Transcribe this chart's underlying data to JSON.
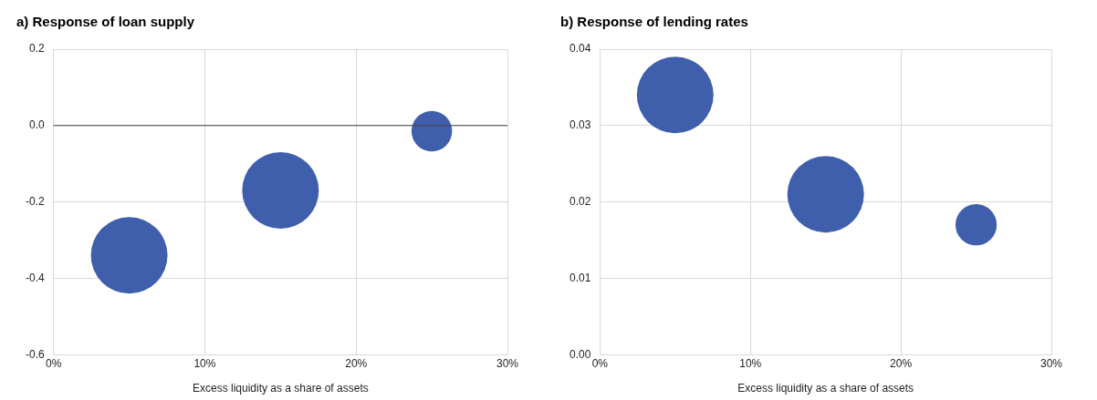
{
  "chart_data": [
    {
      "type": "bubble",
      "title": "a) Response of loan supply",
      "xlabel": "Excess liquidity as a share of assets",
      "x": [
        5,
        15,
        25
      ],
      "values": [
        -0.34,
        -0.17,
        -0.015
      ],
      "sizes": [
        1,
        1,
        0.28
      ],
      "color": "#3f5fac",
      "xlim": [
        0,
        30
      ],
      "xticks": [
        {
          "value": 0,
          "label": "0%"
        },
        {
          "value": 10,
          "label": "10%"
        },
        {
          "value": 20,
          "label": "20%"
        },
        {
          "value": 30,
          "label": "30%"
        }
      ],
      "ylim": [
        -0.6,
        0.2
      ],
      "yticks": [
        {
          "value": -0.6,
          "label": "-0.6"
        },
        {
          "value": -0.4,
          "label": "-0.4"
        },
        {
          "value": -0.2,
          "label": "-0.2"
        },
        {
          "value": 0,
          "label": "0.0"
        },
        {
          "value": 0.2,
          "label": "0.2"
        }
      ],
      "ref_lines": [
        {
          "axis": "y",
          "value": 0,
          "color": "#404040"
        }
      ],
      "grid": true,
      "legend": false
    },
    {
      "type": "bubble",
      "title": "b) Response of lending rates",
      "xlabel": "Excess liquidity as a share of assets",
      "x": [
        5,
        15,
        25
      ],
      "values": [
        0.034,
        0.021,
        0.017
      ],
      "sizes": [
        1,
        1,
        0.29
      ],
      "color": "#3f5fac",
      "xlim": [
        0,
        30
      ],
      "xticks": [
        {
          "value": 0,
          "label": "0%"
        },
        {
          "value": 10,
          "label": "10%"
        },
        {
          "value": 20,
          "label": "20%"
        },
        {
          "value": 30,
          "label": "30%"
        }
      ],
      "ylim": [
        0,
        0.04
      ],
      "yticks": [
        {
          "value": 0,
          "label": "0.00"
        },
        {
          "value": 0.01,
          "label": "0.01"
        },
        {
          "value": 0.02,
          "label": "0.02"
        },
        {
          "value": 0.03,
          "label": "0.03"
        },
        {
          "value": 0.04,
          "label": "0.04"
        }
      ],
      "grid": true,
      "legend": false
    }
  ]
}
